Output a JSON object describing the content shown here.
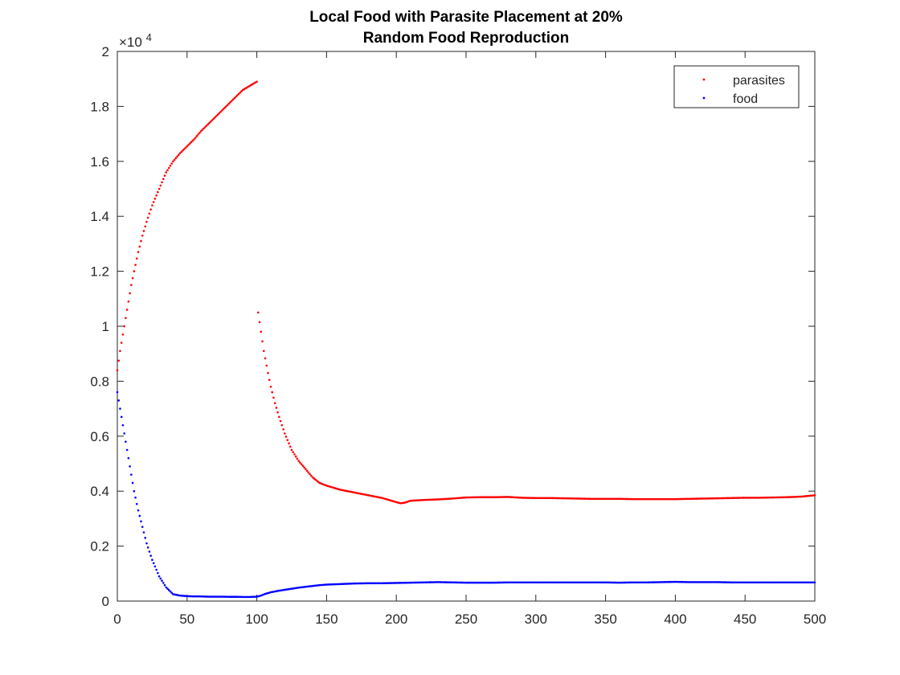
{
  "chart_data": {
    "type": "scatter",
    "title": [
      "Local Food with Parasite Placement at 20%",
      "Random Food Reproduction"
    ],
    "xlabel": "",
    "ylabel": "",
    "xlim": [
      0,
      500
    ],
    "ylim": [
      0,
      20000
    ],
    "y_exponent_label": "×10",
    "y_exponent_power": "4",
    "x_ticks": [
      0,
      50,
      100,
      150,
      200,
      250,
      300,
      350,
      400,
      450,
      500
    ],
    "x_tick_labels": [
      "0",
      "50",
      "100",
      "150",
      "200",
      "250",
      "300",
      "350",
      "400",
      "450",
      "500"
    ],
    "y_ticks": [
      0,
      2000,
      4000,
      6000,
      8000,
      10000,
      12000,
      14000,
      16000,
      18000,
      20000
    ],
    "y_tick_labels": [
      "0",
      "0.2",
      "0.4",
      "0.6",
      "0.8",
      "1",
      "1.2",
      "1.4",
      "1.6",
      "1.8",
      "2"
    ],
    "grid": false,
    "legend_position": "top-right",
    "series": [
      {
        "name": "parasites",
        "color": "#ff0000",
        "marker": "point",
        "points": [
          [
            0,
            8400
          ],
          [
            2,
            9100
          ],
          [
            4,
            9700
          ],
          [
            6,
            10300
          ],
          [
            8,
            10900
          ],
          [
            10,
            11500
          ],
          [
            12,
            12000
          ],
          [
            15,
            12700
          ],
          [
            18,
            13300
          ],
          [
            21,
            13800
          ],
          [
            25,
            14400
          ],
          [
            30,
            15000
          ],
          [
            35,
            15600
          ],
          [
            40,
            16000
          ],
          [
            45,
            16300
          ],
          [
            50,
            16550
          ],
          [
            55,
            16800
          ],
          [
            60,
            17100
          ],
          [
            65,
            17350
          ],
          [
            70,
            17600
          ],
          [
            75,
            17850
          ],
          [
            80,
            18100
          ],
          [
            85,
            18350
          ],
          [
            90,
            18600
          ],
          [
            95,
            18750
          ],
          [
            100,
            18900
          ],
          [
            101,
            10500
          ],
          [
            103,
            9800
          ],
          [
            105,
            9100
          ],
          [
            108,
            8300
          ],
          [
            110,
            7800
          ],
          [
            113,
            7200
          ],
          [
            116,
            6700
          ],
          [
            120,
            6100
          ],
          [
            125,
            5500
          ],
          [
            130,
            5100
          ],
          [
            135,
            4800
          ],
          [
            140,
            4500
          ],
          [
            145,
            4300
          ],
          [
            150,
            4200
          ],
          [
            160,
            4050
          ],
          [
            170,
            3950
          ],
          [
            180,
            3850
          ],
          [
            190,
            3750
          ],
          [
            200,
            3600
          ],
          [
            203,
            3560
          ],
          [
            206,
            3580
          ],
          [
            210,
            3650
          ],
          [
            220,
            3680
          ],
          [
            230,
            3700
          ],
          [
            240,
            3730
          ],
          [
            250,
            3770
          ],
          [
            260,
            3780
          ],
          [
            270,
            3780
          ],
          [
            280,
            3790
          ],
          [
            290,
            3760
          ],
          [
            300,
            3750
          ],
          [
            310,
            3750
          ],
          [
            320,
            3740
          ],
          [
            330,
            3730
          ],
          [
            340,
            3720
          ],
          [
            350,
            3720
          ],
          [
            360,
            3720
          ],
          [
            370,
            3710
          ],
          [
            380,
            3710
          ],
          [
            390,
            3710
          ],
          [
            400,
            3710
          ],
          [
            410,
            3720
          ],
          [
            420,
            3730
          ],
          [
            430,
            3740
          ],
          [
            440,
            3750
          ],
          [
            450,
            3760
          ],
          [
            460,
            3760
          ],
          [
            470,
            3770
          ],
          [
            480,
            3780
          ],
          [
            490,
            3800
          ],
          [
            500,
            3850
          ]
        ]
      },
      {
        "name": "food",
        "color": "#0000ff",
        "marker": "point",
        "points": [
          [
            0,
            7600
          ],
          [
            2,
            7000
          ],
          [
            4,
            6400
          ],
          [
            6,
            5800
          ],
          [
            8,
            5200
          ],
          [
            10,
            4600
          ],
          [
            12,
            4000
          ],
          [
            15,
            3300
          ],
          [
            18,
            2700
          ],
          [
            21,
            2100
          ],
          [
            25,
            1500
          ],
          [
            30,
            900
          ],
          [
            35,
            500
          ],
          [
            40,
            250
          ],
          [
            45,
            200
          ],
          [
            50,
            180
          ],
          [
            55,
            170
          ],
          [
            60,
            170
          ],
          [
            65,
            160
          ],
          [
            70,
            160
          ],
          [
            75,
            160
          ],
          [
            80,
            155
          ],
          [
            85,
            155
          ],
          [
            90,
            150
          ],
          [
            95,
            150
          ],
          [
            100,
            160
          ],
          [
            103,
            200
          ],
          [
            106,
            260
          ],
          [
            110,
            320
          ],
          [
            115,
            370
          ],
          [
            120,
            410
          ],
          [
            125,
            450
          ],
          [
            130,
            490
          ],
          [
            135,
            520
          ],
          [
            140,
            550
          ],
          [
            145,
            580
          ],
          [
            150,
            600
          ],
          [
            160,
            620
          ],
          [
            170,
            640
          ],
          [
            180,
            650
          ],
          [
            190,
            650
          ],
          [
            200,
            660
          ],
          [
            210,
            670
          ],
          [
            220,
            680
          ],
          [
            230,
            690
          ],
          [
            240,
            680
          ],
          [
            250,
            670
          ],
          [
            260,
            670
          ],
          [
            270,
            670
          ],
          [
            280,
            680
          ],
          [
            290,
            680
          ],
          [
            300,
            680
          ],
          [
            310,
            680
          ],
          [
            320,
            680
          ],
          [
            330,
            680
          ],
          [
            340,
            680
          ],
          [
            350,
            680
          ],
          [
            360,
            670
          ],
          [
            370,
            680
          ],
          [
            380,
            680
          ],
          [
            390,
            690
          ],
          [
            400,
            700
          ],
          [
            410,
            690
          ],
          [
            420,
            690
          ],
          [
            430,
            690
          ],
          [
            440,
            680
          ],
          [
            450,
            680
          ],
          [
            460,
            680
          ],
          [
            470,
            680
          ],
          [
            480,
            680
          ],
          [
            490,
            680
          ],
          [
            500,
            680
          ]
        ]
      }
    ]
  }
}
